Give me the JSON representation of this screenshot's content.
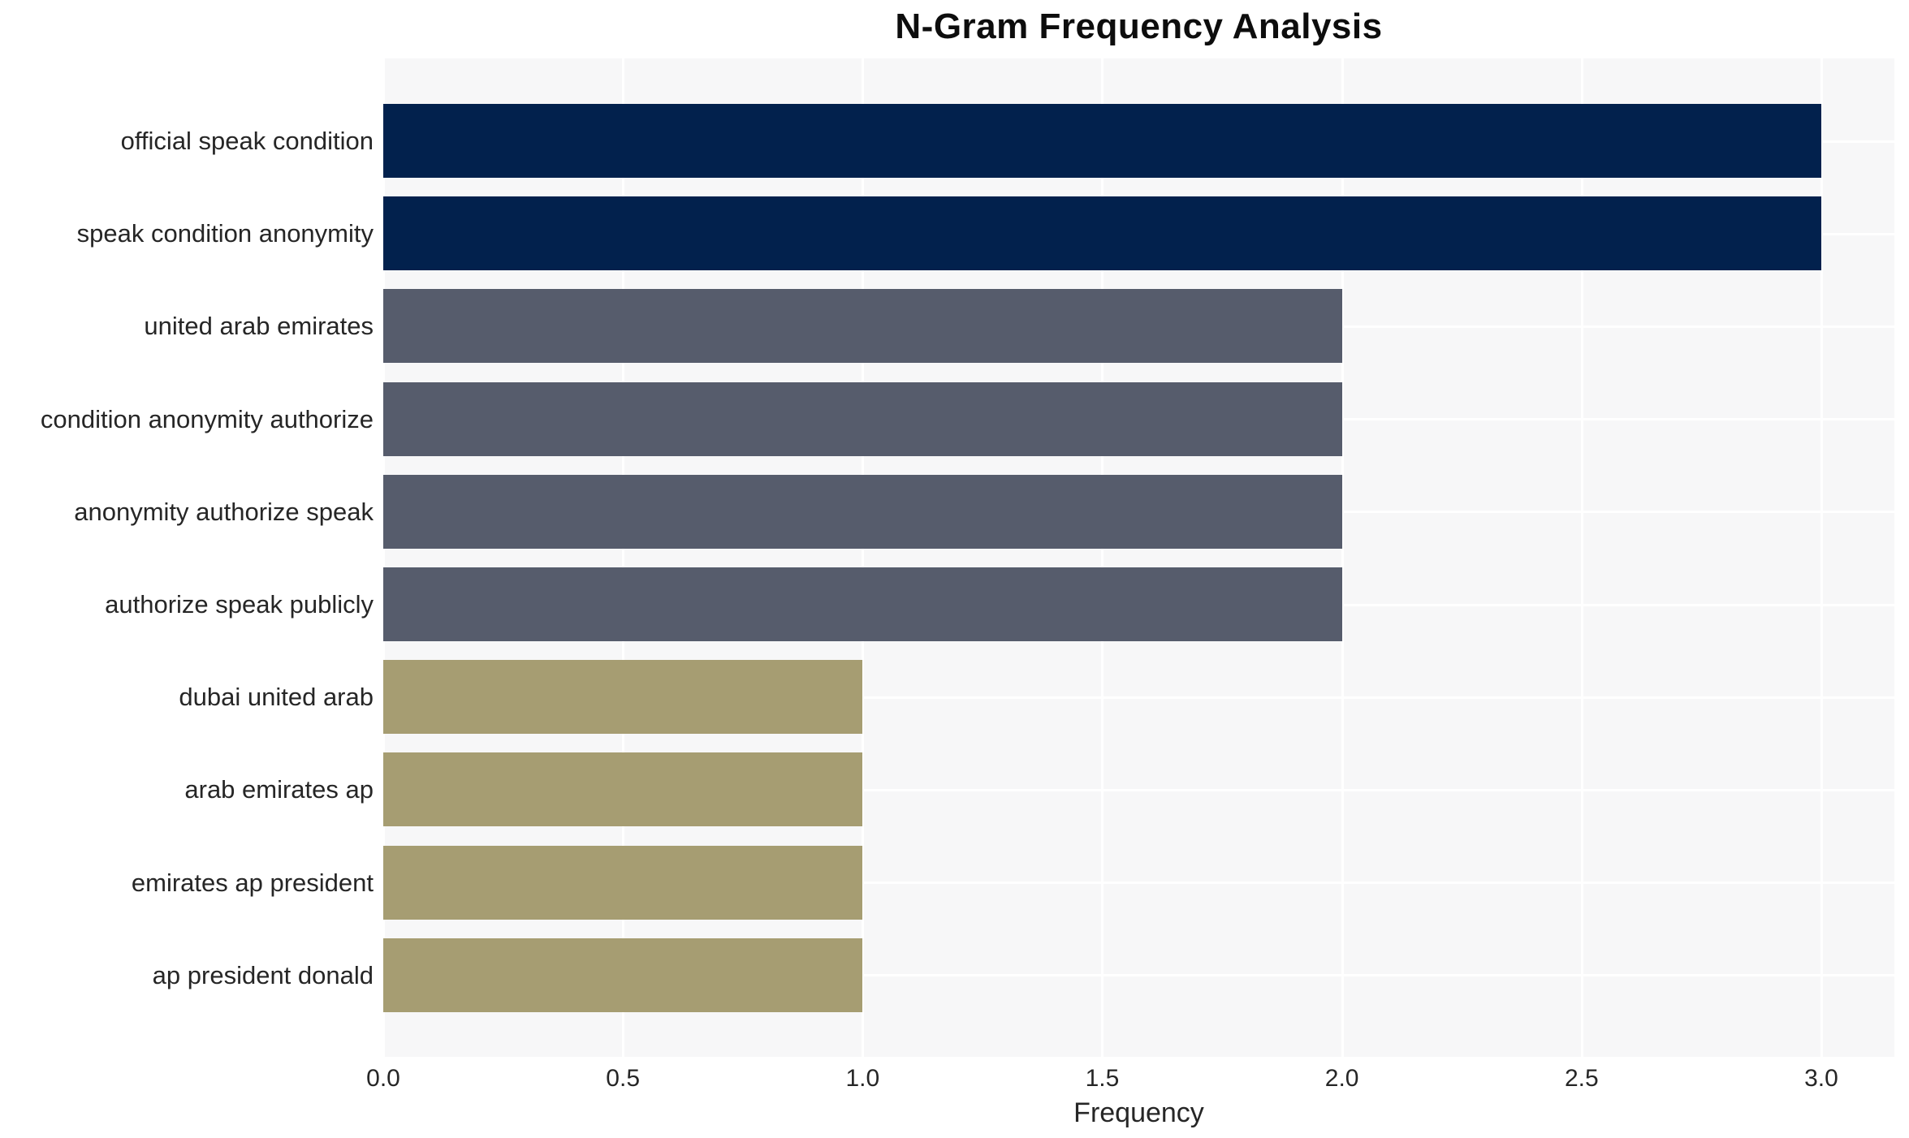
{
  "chart_data": {
    "type": "bar",
    "orientation": "horizontal",
    "title": "N-Gram Frequency Analysis",
    "xlabel": "Frequency",
    "ylabel": "",
    "categories": [
      "official speak condition",
      "speak condition anonymity",
      "united arab emirates",
      "condition anonymity authorize",
      "anonymity authorize speak",
      "authorize speak publicly",
      "dubai united arab",
      "arab emirates ap",
      "emirates ap president",
      "ap president donald"
    ],
    "values": [
      3,
      3,
      2,
      2,
      2,
      2,
      1,
      1,
      1,
      1
    ],
    "bar_colors": [
      "#02214d",
      "#02214d",
      "#565c6c",
      "#565c6c",
      "#565c6c",
      "#565c6c",
      "#a69d72",
      "#a69d72",
      "#a69d72",
      "#a69d72"
    ],
    "colors_by_value": {
      "3": "#02214d",
      "2": "#565c6c",
      "1": "#a69d72"
    },
    "xlim": [
      0,
      3.1525
    ],
    "xticks": [
      0.0,
      0.5,
      1.0,
      1.5,
      2.0,
      2.5,
      3.0
    ],
    "xtick_labels": [
      "0.0",
      "0.5",
      "1.0",
      "1.5",
      "2.0",
      "2.5",
      "3.0"
    ],
    "grid": true,
    "grid_color": "#ffffff",
    "plot_background": "#f7f7f8",
    "figure_background": "#ffffff",
    "text_color": "#262626",
    "legend": false
  }
}
